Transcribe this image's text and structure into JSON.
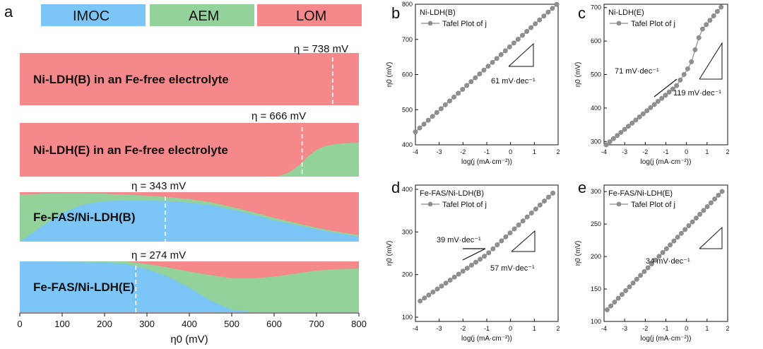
{
  "panel_a": {
    "letter": "a",
    "legend": [
      {
        "name": "IMOC",
        "color": "#7cc5f7"
      },
      {
        "name": "AEM",
        "color": "#93d29a"
      },
      {
        "name": "LOM",
        "color": "#f4888a"
      }
    ],
    "xlabel": "η0 (mV)",
    "xlim": [
      0,
      800
    ],
    "xticks": [
      0,
      100,
      200,
      300,
      400,
      500,
      600,
      700,
      800
    ],
    "rows": [
      {
        "label": "Ni-LDH(B) in an Fe-free electrolyte",
        "eta_label": "η = 738 mV",
        "eta_value": 738,
        "x": [
          0,
          800
        ],
        "lom": [
          1,
          1
        ],
        "aem": [
          0,
          0
        ],
        "imoc": [
          0,
          0
        ]
      },
      {
        "label": "Ni-LDH(E) in an Fe-free electrolyte",
        "eta_label": "η = 666 mV",
        "eta_value": 666,
        "x": [
          0,
          600,
          620,
          640,
          660,
          680,
          700,
          720,
          740,
          760,
          780,
          800
        ],
        "lom": [
          1,
          1,
          0.97,
          0.9,
          0.78,
          0.62,
          0.5,
          0.43,
          0.4,
          0.38,
          0.37,
          0.37
        ],
        "aem": [
          0,
          0,
          0.03,
          0.1,
          0.22,
          0.38,
          0.5,
          0.57,
          0.6,
          0.62,
          0.63,
          0.63
        ],
        "imoc": [
          0,
          0,
          0,
          0,
          0,
          0,
          0,
          0,
          0,
          0,
          0,
          0
        ]
      },
      {
        "label": "Fe-FAS/Ni-LDH(B)",
        "eta_label": "η = 343 mV",
        "eta_value": 343,
        "x": [
          0,
          50,
          100,
          150,
          200,
          250,
          300,
          350,
          400,
          450,
          500,
          550,
          600,
          650,
          700,
          750,
          800
        ],
        "lom": [
          0.05,
          0.03,
          0.02,
          0.02,
          0.03,
          0.05,
          0.07,
          0.1,
          0.14,
          0.2,
          0.3,
          0.4,
          0.52,
          0.62,
          0.72,
          0.8,
          0.87
        ],
        "aem": [
          0.95,
          0.67,
          0.4,
          0.23,
          0.15,
          0.12,
          0.1,
          0.08,
          0.07,
          0.06,
          0.05,
          0.05,
          0.05,
          0.04,
          0.03,
          0.03,
          0.03
        ],
        "imoc": [
          0,
          0.3,
          0.58,
          0.75,
          0.82,
          0.83,
          0.83,
          0.82,
          0.79,
          0.74,
          0.65,
          0.55,
          0.43,
          0.34,
          0.25,
          0.17,
          0.1
        ]
      },
      {
        "label": "Fe-FAS/Ni-LDH(E)",
        "eta_label": "η = 274 mV",
        "eta_value": 274,
        "x": [
          0,
          100,
          200,
          250,
          300,
          350,
          400,
          450,
          500,
          550,
          600,
          650,
          700,
          750,
          800
        ],
        "lom": [
          0,
          0,
          0,
          0,
          0.05,
          0.12,
          0.2,
          0.27,
          0.33,
          0.33,
          0.3,
          0.24,
          0.18,
          0.15,
          0.14
        ],
        "aem": [
          0,
          0,
          0.02,
          0.05,
          0.1,
          0.18,
          0.32,
          0.5,
          0.62,
          0.66,
          0.7,
          0.76,
          0.82,
          0.85,
          0.86
        ],
        "imoc": [
          1,
          1,
          0.98,
          0.95,
          0.85,
          0.7,
          0.48,
          0.23,
          0.05,
          0.01,
          0,
          0,
          0,
          0,
          0
        ]
      }
    ]
  },
  "chart_data": [
    {
      "type": "scatter",
      "letter": "b",
      "title": "Ni-LDH(B)",
      "legend": "Tafel Plot of j",
      "xlabel": "log(j (mA·cm⁻²))",
      "ylabel": "η0 (mV)",
      "xlim": [
        -4,
        2
      ],
      "ylim": [
        400,
        800
      ],
      "xticks": [
        -4,
        -3,
        -2,
        -1,
        0,
        1,
        2
      ],
      "yticks": [
        400,
        500,
        600,
        700,
        800
      ],
      "segments": [
        {
          "x0": -4,
          "x1": 1.95,
          "y0": 437,
          "y1": 800
        }
      ],
      "annotations": [
        {
          "text": "61 mV·dec⁻¹"
        }
      ]
    },
    {
      "type": "scatter",
      "letter": "c",
      "title": "Ni-LDH(E)",
      "legend": "Tafel Plot of j",
      "xlabel": "log(j (mA·cm⁻²))",
      "ylabel": "η0 (mV)",
      "xlim": [
        -4,
        2
      ],
      "ylim": [
        290,
        710
      ],
      "xticks": [
        -4,
        -3,
        -2,
        -1,
        0,
        1,
        2
      ],
      "yticks": [
        300,
        400,
        500,
        600,
        700
      ],
      "segments": [
        {
          "x0": -3.9,
          "x1": -0.5,
          "y0": 290,
          "y1": 465
        },
        {
          "x0": -0.5,
          "x1": 0.2,
          "y0": 465,
          "y1": 530
        },
        {
          "x0": 0.2,
          "x1": 0.7,
          "y0": 530,
          "y1": 630
        },
        {
          "x0": 0.7,
          "x1": 1.7,
          "y0": 630,
          "y1": 703
        }
      ],
      "annotations": [
        {
          "text": "71 mV·dec⁻¹"
        },
        {
          "text": "119 mV·dec⁻¹"
        }
      ]
    },
    {
      "type": "scatter",
      "letter": "d",
      "title": "Fe-FAS/Ni-LDH(B)",
      "legend": "Tafel Plot of j",
      "xlabel": "log(j (mA·cm⁻²))",
      "ylabel": "η0 (mV)",
      "xlim": [
        -4,
        2
      ],
      "ylim": [
        90,
        410
      ],
      "xticks": [
        -4,
        -3,
        -2,
        -1,
        0,
        1,
        2
      ],
      "yticks": [
        100,
        200,
        300,
        400
      ],
      "segments": [
        {
          "x0": -3.8,
          "x1": -1.0,
          "y0": 138,
          "y1": 247
        },
        {
          "x0": -1.0,
          "x1": 1.95,
          "y0": 247,
          "y1": 400
        }
      ],
      "annotations": [
        {
          "text": "39 mV·dec⁻¹"
        },
        {
          "text": "57 mV·dec⁻¹"
        }
      ]
    },
    {
      "type": "scatter",
      "letter": "e",
      "title": "Fe-FAS/Ni-LDH(E)",
      "legend": "Tafel Plot of j",
      "xlabel": "log(j (mA·cm⁻²))",
      "ylabel": "η0 (mV)",
      "xlim": [
        -4,
        2
      ],
      "ylim": [
        100,
        310
      ],
      "xticks": [
        -4,
        -3,
        -2,
        -1,
        0,
        1,
        2
      ],
      "yticks": [
        100,
        150,
        200,
        250,
        300
      ],
      "segments": [
        {
          "x0": -3.85,
          "x1": 1.75,
          "y0": 118,
          "y1": 301
        }
      ],
      "annotations": [
        {
          "text": "34 mV·dec⁻¹"
        }
      ]
    }
  ]
}
